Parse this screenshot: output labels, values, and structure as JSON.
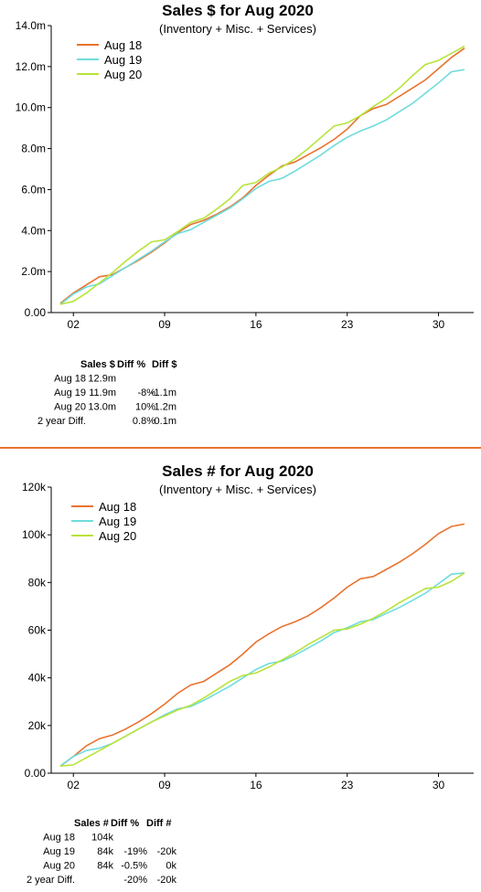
{
  "chart_data": [
    {
      "type": "line",
      "title": "Sales $ for Aug 2020",
      "subtitle": "(Inventory + Misc. + Services)",
      "xlabel": "",
      "ylabel": "",
      "x_ticks": [
        2,
        9,
        16,
        23,
        30
      ],
      "x_tick_labels": [
        "02",
        "09",
        "16",
        "23",
        "30"
      ],
      "xlim": [
        0.3,
        32.7
      ],
      "ylim": [
        0,
        14
      ],
      "y_ticks": [
        0,
        2,
        4,
        6,
        8,
        10,
        12,
        14
      ],
      "y_tick_labels": [
        "0.00",
        "2.0m",
        "4.0m",
        "6.0m",
        "8.0m",
        "10.0m",
        "12.0m",
        "14.0m"
      ],
      "legend_position": "top-left",
      "grid": false,
      "series": [
        {
          "name": "Aug 18",
          "color": "#e8732e",
          "x": [
            1,
            2,
            3,
            4,
            5,
            6,
            7,
            8,
            9,
            10,
            11,
            12,
            13,
            14,
            15,
            16,
            17,
            18,
            19,
            20,
            21,
            22,
            23,
            24,
            25,
            26,
            27,
            28,
            29,
            30,
            31,
            32
          ],
          "y": [
            0.45,
            0.95,
            1.35,
            1.75,
            1.85,
            2.2,
            2.55,
            2.95,
            3.4,
            3.9,
            4.3,
            4.5,
            4.8,
            5.15,
            5.6,
            6.2,
            6.7,
            7.15,
            7.35,
            7.7,
            8.05,
            8.45,
            8.95,
            9.6,
            9.95,
            10.15,
            10.55,
            10.95,
            11.35,
            11.9,
            12.45,
            12.9
          ]
        },
        {
          "name": "Aug 19",
          "color": "#6fdcdc",
          "x": [
            1,
            2,
            3,
            4,
            5,
            6,
            7,
            8,
            9,
            10,
            11,
            12,
            13,
            14,
            15,
            16,
            17,
            18,
            19,
            20,
            21,
            22,
            23,
            24,
            25,
            26,
            27,
            28,
            29,
            30,
            31,
            32
          ],
          "y": [
            0.4,
            0.9,
            1.25,
            1.4,
            1.8,
            2.2,
            2.6,
            3.0,
            3.45,
            3.85,
            4.05,
            4.4,
            4.75,
            5.1,
            5.55,
            6.05,
            6.4,
            6.55,
            6.9,
            7.3,
            7.7,
            8.15,
            8.55,
            8.85,
            9.1,
            9.4,
            9.8,
            10.2,
            10.7,
            11.2,
            11.75,
            11.85
          ]
        },
        {
          "name": "Aug 20",
          "color": "#b8e33a",
          "x": [
            1,
            2,
            3,
            4,
            5,
            6,
            7,
            8,
            9,
            10,
            11,
            12,
            13,
            14,
            15,
            16,
            17,
            18,
            19,
            20,
            21,
            22,
            23,
            24,
            25,
            26,
            27,
            28,
            29,
            30,
            31,
            32
          ],
          "y": [
            0.4,
            0.55,
            0.95,
            1.45,
            1.95,
            2.5,
            3.0,
            3.45,
            3.55,
            3.95,
            4.4,
            4.6,
            5.05,
            5.55,
            6.2,
            6.35,
            6.8,
            7.1,
            7.5,
            8.0,
            8.55,
            9.1,
            9.25,
            9.6,
            10.05,
            10.45,
            10.95,
            11.55,
            12.1,
            12.3,
            12.65,
            13.0
          ]
        }
      ]
    },
    {
      "type": "line",
      "title": "Sales # for Aug 2020",
      "subtitle": "(Inventory + Misc. + Services)",
      "xlabel": "",
      "ylabel": "",
      "x_ticks": [
        2,
        9,
        16,
        23,
        30
      ],
      "x_tick_labels": [
        "02",
        "09",
        "16",
        "23",
        "30"
      ],
      "xlim": [
        0.3,
        32.7
      ],
      "ylim": [
        0,
        120
      ],
      "y_ticks": [
        0,
        20,
        40,
        60,
        80,
        100,
        120
      ],
      "y_tick_labels": [
        "0.00",
        "20k",
        "40k",
        "60k",
        "80k",
        "100k",
        "120k"
      ],
      "legend_position": "top-left",
      "grid": false,
      "series": [
        {
          "name": "Aug 18",
          "color": "#e8732e",
          "x": [
            1,
            2,
            3,
            4,
            5,
            6,
            7,
            8,
            9,
            10,
            11,
            12,
            13,
            14,
            15,
            16,
            17,
            18,
            19,
            20,
            21,
            22,
            23,
            24,
            25,
            26,
            27,
            28,
            29,
            30,
            31,
            32
          ],
          "y": [
            3,
            7,
            11.5,
            14.5,
            16,
            18.5,
            21.5,
            25,
            29,
            33.5,
            37,
            38.5,
            42,
            45.5,
            50,
            55,
            58.5,
            61.5,
            63.5,
            66,
            69.5,
            73.5,
            78,
            81.5,
            82.5,
            85.5,
            88.5,
            92,
            96,
            100.5,
            103.5,
            104.5
          ]
        },
        {
          "name": "Aug 19",
          "color": "#6fdcdc",
          "x": [
            1,
            2,
            3,
            4,
            5,
            6,
            7,
            8,
            9,
            10,
            11,
            12,
            13,
            14,
            15,
            16,
            17,
            18,
            19,
            20,
            21,
            22,
            23,
            24,
            25,
            26,
            27,
            28,
            29,
            30,
            31,
            32
          ],
          "y": [
            3,
            7,
            9.5,
            10.5,
            12.5,
            15.5,
            18.5,
            21.5,
            24.5,
            27,
            28,
            30.5,
            33.5,
            36.5,
            40,
            43.5,
            46,
            47,
            49.5,
            52.5,
            55.5,
            59,
            61,
            63.5,
            64.5,
            67,
            69.5,
            72.5,
            75.5,
            79.5,
            83.5,
            84
          ]
        },
        {
          "name": "Aug 20",
          "color": "#b8e33a",
          "x": [
            1,
            2,
            3,
            4,
            5,
            6,
            7,
            8,
            9,
            10,
            11,
            12,
            13,
            14,
            15,
            16,
            17,
            18,
            19,
            20,
            21,
            22,
            23,
            24,
            25,
            26,
            27,
            28,
            29,
            30,
            31,
            32
          ],
          "y": [
            3,
            3.5,
            6.5,
            9.5,
            12.5,
            15.5,
            18.5,
            21.5,
            24,
            26.5,
            28.5,
            31.5,
            35,
            38.5,
            41,
            42,
            44.5,
            47.5,
            50.5,
            54,
            57,
            60,
            60.5,
            62.5,
            65,
            68,
            71.5,
            74.5,
            77.5,
            78,
            80.5,
            84
          ]
        }
      ]
    }
  ],
  "tables": [
    {
      "headers": [
        "Sales $",
        "Diff %",
        "Diff $"
      ],
      "rows": [
        {
          "label": "Aug 18",
          "sales": "12.9m",
          "pct": "",
          "diff": ""
        },
        {
          "label": "Aug 19",
          "sales": "11.9m",
          "pct": "-8%",
          "diff": "-1.1m"
        },
        {
          "label": "Aug 20",
          "sales": "13.0m",
          "pct": "10%",
          "diff": "1.2m"
        },
        {
          "label": "2 year Diff.",
          "sales": "",
          "pct": "0.8%",
          "diff": "0.1m"
        }
      ]
    },
    {
      "headers": [
        "Sales #",
        "Diff %",
        "Diff #"
      ],
      "rows": [
        {
          "label": "Aug 18",
          "sales": "104k",
          "pct": "",
          "diff": ""
        },
        {
          "label": "Aug 19",
          "sales": "84k",
          "pct": "-19%",
          "diff": "-20k"
        },
        {
          "label": "Aug 20",
          "sales": "84k",
          "pct": "-0.5%",
          "diff": "0k"
        },
        {
          "label": "2 year Diff.",
          "sales": "",
          "pct": "-20%",
          "diff": "-20k"
        }
      ]
    }
  ],
  "colors": {
    "divider": "#e8732e",
    "axis": "#000000"
  }
}
